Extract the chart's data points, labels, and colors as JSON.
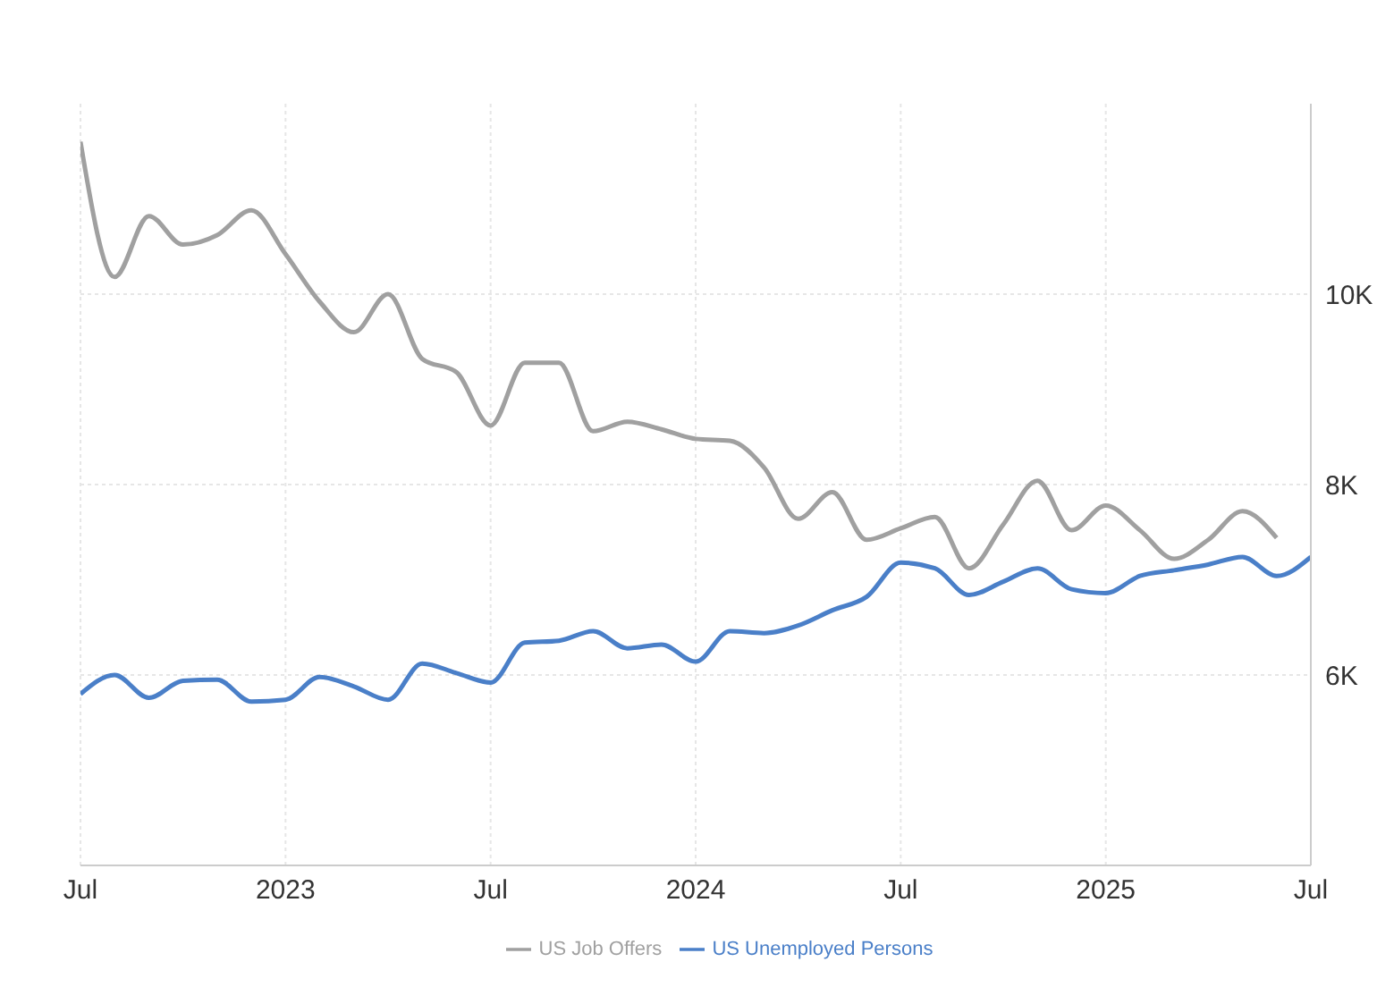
{
  "chart_data": {
    "type": "line",
    "x": [
      "2022-07",
      "2022-08",
      "2022-09",
      "2022-10",
      "2022-11",
      "2022-12",
      "2023-01",
      "2023-02",
      "2023-03",
      "2023-04",
      "2023-05",
      "2023-06",
      "2023-07",
      "2023-08",
      "2023-09",
      "2023-10",
      "2023-11",
      "2023-12",
      "2024-01",
      "2024-02",
      "2024-03",
      "2024-04",
      "2024-05",
      "2024-06",
      "2024-07",
      "2024-08",
      "2024-09",
      "2024-10",
      "2024-11",
      "2024-12",
      "2025-01",
      "2025-02",
      "2025-03",
      "2025-04",
      "2025-05",
      "2025-06",
      "2025-07"
    ],
    "series": [
      {
        "name": "US Unemployed Persons",
        "color": "#4a7fc8",
        "values": [
          5800,
          6000,
          5760,
          5940,
          5950,
          5720,
          5740,
          5980,
          5880,
          5740,
          6120,
          6020,
          5920,
          6340,
          6360,
          6460,
          6280,
          6320,
          6140,
          6460,
          6440,
          6520,
          6680,
          6820,
          7180,
          7120,
          6840,
          6980,
          7120,
          6900,
          6860,
          7040,
          7100,
          7160,
          7240,
          7040,
          7240
        ]
      },
      {
        "name": "US Job Offers",
        "color": "#a0a0a0",
        "values": [
          11600,
          10180,
          10820,
          10520,
          10620,
          10880,
          10420,
          9920,
          9600,
          10000,
          9320,
          9180,
          8620,
          9280,
          9280,
          8560,
          8660,
          8580,
          8480,
          8460,
          8180,
          7640,
          7920,
          7420,
          7540,
          7660,
          7120,
          7580,
          8040,
          7520,
          7780,
          7520,
          7220,
          7420,
          7720,
          7440,
          null
        ]
      }
    ],
    "xlim": [
      "2022-07",
      "2025-07"
    ],
    "xticks": [
      {
        "value": "2022-07",
        "label": "Jul"
      },
      {
        "value": "2023-01",
        "label": "2023"
      },
      {
        "value": "2023-07",
        "label": "Jul"
      },
      {
        "value": "2024-01",
        "label": "2024"
      },
      {
        "value": "2024-07",
        "label": "Jul"
      },
      {
        "value": "2025-01",
        "label": "2025"
      },
      {
        "value": "2025-07",
        "label": "Jul"
      }
    ],
    "ylim": [
      4000,
      12000
    ],
    "yticks": [
      {
        "value": 6000,
        "label": "6K"
      },
      {
        "value": 8000,
        "label": "8K"
      },
      {
        "value": 10000,
        "label": "10K"
      }
    ],
    "grid": true,
    "legend": "bottom",
    "line_style": "solid"
  }
}
